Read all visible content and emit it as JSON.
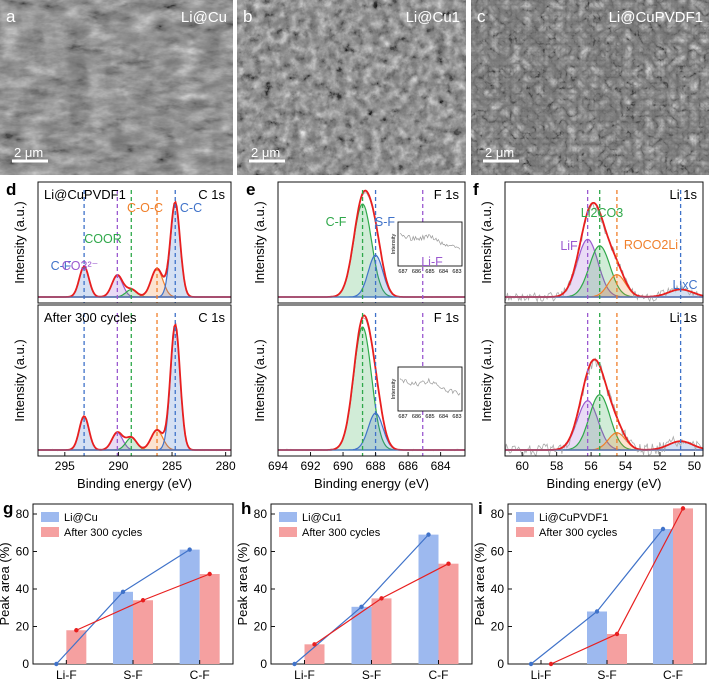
{
  "sem_panels": [
    {
      "letter": "a",
      "label": "Li@Cu",
      "scale": "2 μm"
    },
    {
      "letter": "b",
      "label": "Li@Cu1",
      "scale": "2 μm"
    },
    {
      "letter": "c",
      "label": "Li@CuPVDF1",
      "scale": "2 μm"
    }
  ],
  "colors": {
    "blue": "#3f72c9",
    "red": "#e81f1f",
    "orange": "#f07f2a",
    "green": "#2fa84a",
    "purple": "#9b59d0",
    "bar_blue": "#9db9ef",
    "bar_red": "#f5a0a0"
  },
  "xps_axis_title_x": "Binding energy (eV)",
  "xps_axis_title_y": "Intensity (a.u.)",
  "xps_panels": [
    {
      "letter": "d",
      "xlim": [
        297.5,
        279.5
      ],
      "xticks": [
        "295",
        "290",
        "285",
        "280"
      ],
      "top": {
        "sample": "Li@CuPVDF1",
        "region": "C 1s"
      },
      "bottom": {
        "sample": "After 300 cycles",
        "region": "C 1s"
      },
      "peaks": [
        {
          "name": "C-F",
          "position": 293.2,
          "color": "#3f72c9"
        },
        {
          "name": "CO3²⁻",
          "position": 290.1,
          "color": "#9b59d0"
        },
        {
          "name": "COOR",
          "position": 288.8,
          "color": "#2fa84a"
        },
        {
          "name": "C-O-C",
          "position": 286.4,
          "color": "#f07f2a"
        },
        {
          "name": "C-C",
          "position": 284.7,
          "color": "#3f72c9"
        }
      ]
    },
    {
      "letter": "e",
      "xlim": [
        694,
        682.5
      ],
      "xticks": [
        "694",
        "692",
        "690",
        "688",
        "686",
        "684"
      ],
      "top": {
        "sample": "",
        "region": "F 1s"
      },
      "bottom": {
        "sample": "",
        "region": "F 1s"
      },
      "peaks": [
        {
          "name": "C-F",
          "position": 688.8,
          "color": "#2fa84a"
        },
        {
          "name": "S-F",
          "position": 688.0,
          "color": "#3f72c9"
        },
        {
          "name": "Li-F",
          "position": 685.1,
          "color": "#9b59d0"
        }
      ],
      "inset": {
        "ylabel": "Intensity",
        "xticks": [
          "687",
          "686",
          "685",
          "684",
          "683"
        ]
      }
    },
    {
      "letter": "f",
      "xlim": [
        61,
        49.5
      ],
      "xticks": [
        "60",
        "58",
        "56",
        "54",
        "52",
        "50"
      ],
      "top": {
        "sample": "",
        "region": "Li 1s"
      },
      "bottom": {
        "sample": "",
        "region": "Li 1s"
      },
      "peaks": [
        {
          "name": "LiF",
          "position": 56.2,
          "color": "#9b59d0"
        },
        {
          "name": "Li2CO3",
          "position": 55.5,
          "color": "#2fa84a"
        },
        {
          "name": "ROCO2Li",
          "position": 54.5,
          "color": "#f07f2a"
        },
        {
          "name": "LixC",
          "position": 50.8,
          "color": "#3f72c9"
        }
      ]
    }
  ],
  "chart_data": [
    {
      "letter": "g",
      "type": "bar",
      "categories": [
        "Li-F",
        "S-F",
        "C-F"
      ],
      "ylabel": "Peak area (%)",
      "ylim": [
        0,
        80
      ],
      "yticks": [
        "0",
        "20",
        "40",
        "60",
        "80"
      ],
      "series": [
        {
          "name": "Li@Cu",
          "values": [
            0,
            38.5,
            61
          ]
        },
        {
          "name": "After 300 cycles",
          "values": [
            18,
            34,
            48
          ]
        }
      ]
    },
    {
      "letter": "h",
      "type": "bar",
      "categories": [
        "Li-F",
        "S-F",
        "C-F"
      ],
      "ylabel": "Peak area (%)",
      "ylim": [
        0,
        80
      ],
      "yticks": [
        "0",
        "20",
        "40",
        "60",
        "80"
      ],
      "series": [
        {
          "name": "Li@Cu1",
          "values": [
            0,
            30.5,
            69
          ]
        },
        {
          "name": "After 300 cycles",
          "values": [
            10.5,
            35,
            53.5
          ]
        }
      ]
    },
    {
      "letter": "i",
      "type": "bar",
      "categories": [
        "Li-F",
        "S-F",
        "C-F"
      ],
      "ylabel": "Peak area (%)",
      "ylim": [
        0,
        80
      ],
      "yticks": [
        "0",
        "20",
        "40",
        "60",
        "80"
      ],
      "series": [
        {
          "name": "Li@CuPVDF1",
          "values": [
            0,
            28,
            72
          ]
        },
        {
          "name": "After 300 cycles",
          "values": [
            0,
            16,
            83
          ]
        }
      ]
    }
  ]
}
